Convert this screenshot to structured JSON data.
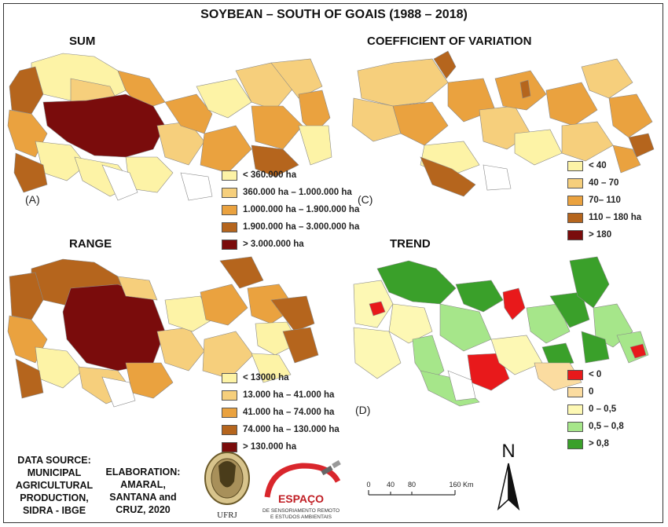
{
  "title": "SOYBEAN – SOUTH OF GOAIS (1988 – 2018)",
  "panels": [
    {
      "id": "sum",
      "title": "SUM",
      "letter": "(A)",
      "legend": [
        {
          "label": "< 360.000 ha",
          "color": "#fdf3a6"
        },
        {
          "label": "360.000 ha – 1.000.000 ha",
          "color": "#f6cf7c"
        },
        {
          "label": "1.000.000 ha – 1.900.000 ha",
          "color": "#eaa23f"
        },
        {
          "label": "1.900.000 ha – 3.000.000 ha",
          "color": "#b5651d"
        },
        {
          "label": "> 3.000.000 ha",
          "color": "#7a0c0c"
        }
      ]
    },
    {
      "id": "cv",
      "title": "COEFFICIENT OF VARIATION",
      "letter": "(C)",
      "legend": [
        {
          "label": "< 40",
          "color": "#fdf3a6"
        },
        {
          "label": "40 – 70",
          "color": "#f6cf7c"
        },
        {
          "label": "70– 110",
          "color": "#eaa23f"
        },
        {
          "label": "110 – 180 ha",
          "color": "#b5651d"
        },
        {
          "label": "> 180",
          "color": "#7a0c0c"
        }
      ]
    },
    {
      "id": "range",
      "title": "RANGE",
      "letter": "",
      "legend": [
        {
          "label": "< 13000 ha",
          "color": "#fdf3a6"
        },
        {
          "label": "13.000 ha – 41.000 ha",
          "color": "#f6cf7c"
        },
        {
          "label": "41.000 ha – 74.000 ha",
          "color": "#eaa23f"
        },
        {
          "label": "74.000 ha – 130.000 ha",
          "color": "#b5651d"
        },
        {
          "label": "> 130.000 ha",
          "color": "#7a0c0c"
        }
      ]
    },
    {
      "id": "trend",
      "title": "TREND",
      "letter": "(D)",
      "legend": [
        {
          "label": "< 0",
          "color": "#e8191b"
        },
        {
          "label": "0",
          "color": "#fbdca0"
        },
        {
          "label": "0 – 0,5",
          "color": "#fdf8b4"
        },
        {
          "label": "0,5 – 0,8",
          "color": "#a6e68a"
        },
        {
          "label": "> 0,8",
          "color": "#3aa02a"
        }
      ]
    }
  ],
  "credits": {
    "source": "DATA SOURCE: MUNICIPAL AGRICULTURAL PRODUCTION, SIDRA - IBGE",
    "source_lines": [
      "DATA SOURCE:",
      "MUNICIPAL",
      "AGRICULTURAL",
      "PRODUCTION,",
      "SIDRA - IBGE"
    ],
    "elaboration_lines": [
      "ELABORATION:",
      "AMARAL,",
      "SANTANA and",
      "CRUZ, 2020"
    ]
  },
  "logos": {
    "ufrj": "UFRJ",
    "espaco": "ESPAÇO",
    "espaco_sub1": "DE SENSORIAMENTO REMOTO",
    "espaco_sub2": "E ESTUDOS AMBIENTAIS"
  },
  "scale": {
    "ticks": [
      "0",
      "40",
      "80",
      "160"
    ],
    "unit": "Km"
  },
  "north": "N",
  "colors": {
    "c1": "#fdf3a6",
    "c2": "#f6cf7c",
    "c3": "#eaa23f",
    "c4": "#b5651d",
    "c5": "#7a0c0c",
    "t_neg": "#e8191b",
    "t_zero": "#fbdca0",
    "t_low": "#fdf8b4",
    "t_mid": "#a6e68a",
    "t_high": "#3aa02a"
  }
}
